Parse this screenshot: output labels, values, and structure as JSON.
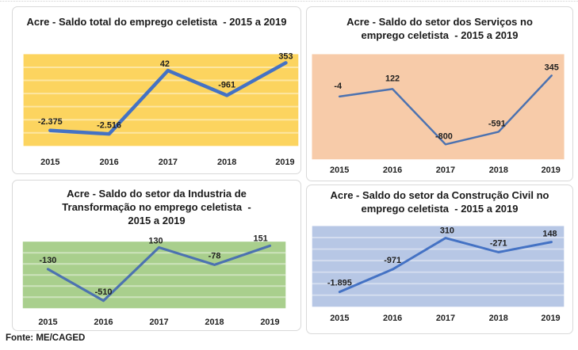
{
  "page": {
    "source_note": "Fonte: ME/CAGED"
  },
  "chart_data": [
    {
      "type": "line",
      "title": "Acre - Saldo total do emprego celetista  - 2015 a 2019",
      "categories": [
        "2015",
        "2016",
        "2017",
        "2018",
        "2019"
      ],
      "values": [
        -2375,
        -2516,
        42,
        -961,
        353
      ],
      "point_labels": [
        "-2.375",
        "-2.516",
        "42",
        "-961",
        "353"
      ],
      "ylim": [
        -3000,
        700
      ],
      "xlabel": "",
      "ylabel": "",
      "legend": "none",
      "grid": "horizontal-major",
      "plot_bg": "#FCD45F",
      "gridline_color": "rgba(255,255,255,0.42)",
      "gridline_count": 6,
      "line_color": "#4472C4",
      "line_width": 4.5
    },
    {
      "type": "line",
      "title": "Acre - Saldo do setor dos Serviços no emprego celetista  - 2015 a 2019",
      "categories": [
        "2015",
        "2016",
        "2017",
        "2018",
        "2019"
      ],
      "values": [
        -4,
        122,
        -800,
        -591,
        345
      ],
      "point_labels": [
        "-4",
        "122",
        "-800",
        "-591",
        "345"
      ],
      "ylim": [
        -1050,
        700
      ],
      "xlabel": "",
      "ylabel": "",
      "legend": "none",
      "grid": "none",
      "plot_bg": "#F7CBA9",
      "gridline_color": "rgba(255,255,255,0.14)",
      "gridline_count": 0,
      "line_color": "#4C72B0",
      "line_width": 2.5
    },
    {
      "type": "line",
      "title": "Acre - Saldo do setor da Industria de Transformação no emprego celetista  - 2015 a 2019",
      "categories": [
        "2015",
        "2016",
        "2017",
        "2018",
        "2019"
      ],
      "values": [
        -130,
        -510,
        130,
        -78,
        151
      ],
      "point_labels": [
        "-130",
        "-510",
        "130",
        "-78",
        "151"
      ],
      "ylim": [
        -600,
        200
      ],
      "xlabel": "",
      "ylabel": "",
      "legend": "none",
      "grid": "horizontal-major",
      "plot_bg": "#A9CF8D",
      "gridline_color": "rgba(255,255,255,0.42)",
      "gridline_count": 5,
      "line_color": "#4C72B0",
      "line_width": 3.2
    },
    {
      "type": "line",
      "title": "Acre - Saldo do setor da Construção Civil no emprego celetista  - 2015 a 2019",
      "categories": [
        "2015",
        "2016",
        "2017",
        "2018",
        "2019"
      ],
      "values": [
        -1895,
        -971,
        310,
        -271,
        148
      ],
      "point_labels": [
        "-1.895",
        "-971",
        "310",
        "-271",
        "148"
      ],
      "ylim": [
        -2500,
        800
      ],
      "xlabel": "",
      "ylabel": "",
      "legend": "none",
      "grid": "horizontal-major",
      "plot_bg": "#B7C7E5",
      "gridline_color": "rgba(255,255,255,0.40)",
      "gridline_count": 6,
      "line_color": "#4472C4",
      "line_width": 3
    }
  ]
}
